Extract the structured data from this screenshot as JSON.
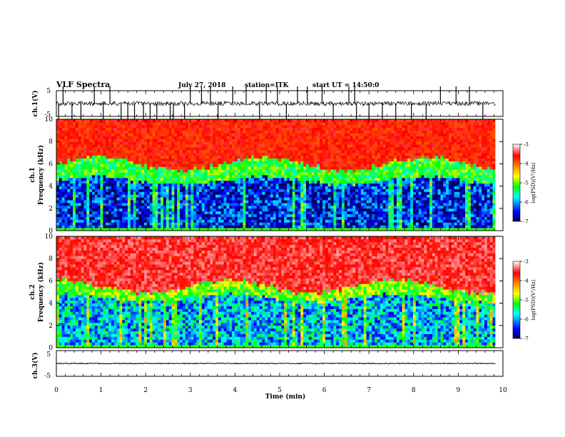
{
  "header": {
    "title": "VLF Spectra",
    "date": "July 27, 2018",
    "station": "station=ITK",
    "start": "start UT = 14:50:0"
  },
  "chart_data": [
    {
      "type": "line",
      "name": "ch1-waveform",
      "ylabel": "ch.1(V)",
      "ytick_labels": [
        "5",
        "-5"
      ],
      "ylim": [
        -5,
        5
      ],
      "xlim": [
        0,
        10
      ],
      "baseline": 0.3,
      "spike_times": [
        0.05,
        0.15,
        0.35,
        0.55,
        0.85,
        1.05,
        1.2,
        1.45,
        1.6,
        1.75,
        1.95,
        2.1,
        2.25,
        2.55,
        2.62,
        2.87,
        3.0,
        3.25,
        3.45,
        3.62,
        3.95,
        4.25,
        4.55,
        4.7,
        4.95,
        5.15,
        5.4,
        5.62,
        5.95,
        6.2,
        6.55,
        6.68,
        6.72,
        7.0,
        7.3,
        7.6,
        7.95,
        8.28,
        8.6,
        8.95,
        9.25,
        9.55
      ]
    },
    {
      "type": "heatmap",
      "name": "ch1-spectrogram",
      "ylabel": "ch.1\nFrequency (kHz)",
      "ytick_labels": [
        "0",
        "2",
        "4",
        "6",
        "8",
        "10"
      ],
      "ylim": [
        0,
        10
      ],
      "xlim": [
        0,
        10
      ],
      "zlim": [
        -7,
        -3
      ],
      "colorbar_label": "log(PSD)(V²/Hz)",
      "colorbar_ticks": [
        "-3",
        "-4",
        "-5",
        "-6",
        "-7"
      ],
      "frequency_bands_kHz": [
        0.3,
        4.5,
        6.0,
        10
      ],
      "band_levels_log_psd": [
        -6.5,
        -5.2,
        -3.7
      ]
    },
    {
      "type": "heatmap",
      "name": "ch2-spectrogram",
      "ylabel": "ch.2\nFrequency (kHz)",
      "ytick_labels": [
        "0",
        "2",
        "4",
        "6",
        "8",
        "10"
      ],
      "ylim": [
        0,
        10
      ],
      "xlim": [
        0,
        10
      ],
      "zlim": [
        -7,
        -3
      ],
      "colorbar_label": "log(PSD)(V²/Hz)",
      "colorbar_ticks": [
        "-3",
        "-4",
        "-5",
        "-6",
        "-7"
      ],
      "frequency_bands_kHz": [
        0.3,
        4.5,
        5.5,
        10
      ],
      "band_levels_log_psd": [
        -5.9,
        -5.0,
        -3.5
      ]
    },
    {
      "type": "line",
      "name": "ch3-waveform",
      "ylabel": "ch.3(V)",
      "ytick_labels": [
        "5",
        "-5"
      ],
      "ylim": [
        -5,
        5
      ],
      "xlim": [
        0,
        10
      ],
      "baseline": 0.3
    }
  ],
  "xaxis": {
    "label": "Time (min)",
    "ticks": [
      "0",
      "1",
      "2",
      "3",
      "4",
      "5",
      "6",
      "7",
      "8",
      "9",
      "10"
    ],
    "data_end": 9.83
  },
  "colors": {
    "colormap": [
      "#000080",
      "#0000ff",
      "#00ffff",
      "#00ff00",
      "#ffff00",
      "#ff8000",
      "#ff0000",
      "#ffffff"
    ]
  }
}
